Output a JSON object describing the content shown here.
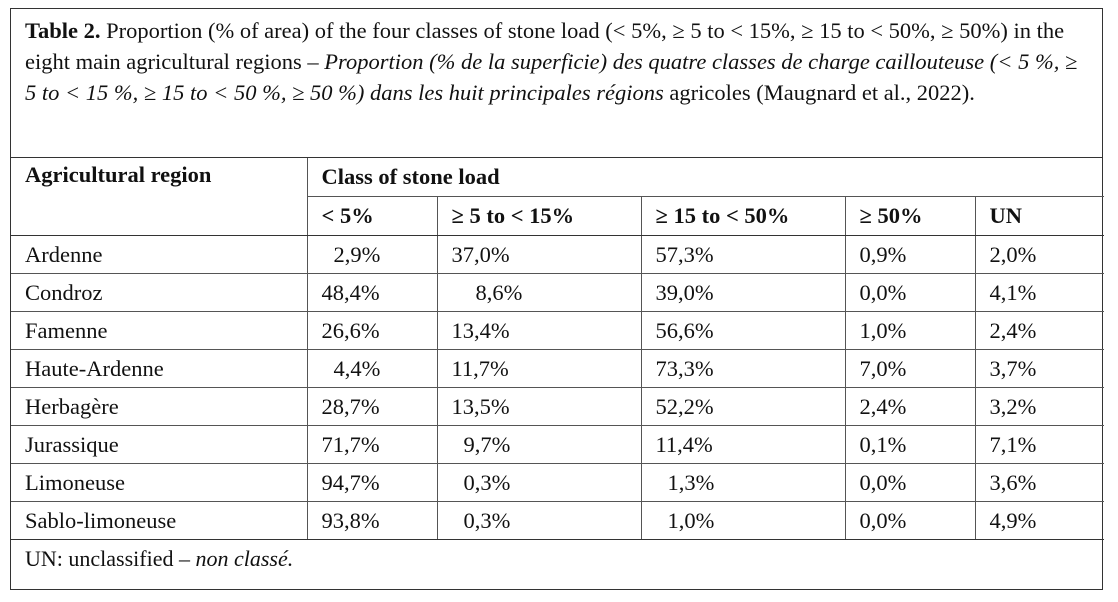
{
  "caption": {
    "label": "Table 2.",
    "text_en": " Proportion (% of area) of the four classes of stone load (< 5%, ≥ 5 to < 15%, ≥ 15 to < 50%, ≥ 50%) in the eight main agricultural regions – ",
    "text_fr": "Proportion (% de la superficie) des quatre classes de charge caillouteuse (< 5 %, ≥ 5 to < 15 %, ≥ 15 to < 50 %, ≥ 50 %) dans les huit principales régions",
    "text_tail": " agricoles (Maugnard et al., 2022)."
  },
  "table": {
    "region_header": "Agricultural region",
    "group_header": "Class of stone load",
    "columns": [
      "< 5%",
      "≥ 5 to < 15%",
      "≥ 15 to < 50%",
      "≥ 50%",
      "UN"
    ],
    "rows": [
      {
        "region": "Ardenne",
        "values": [
          "2,9%",
          "37,0%",
          "57,3%",
          "0,9%",
          "2,0%"
        ]
      },
      {
        "region": "Condroz",
        "values": [
          "48,4%",
          "8,6%",
          "39,0%",
          "0,0%",
          "4,1%"
        ]
      },
      {
        "region": "Famenne",
        "values": [
          "26,6%",
          "13,4%",
          "56,6%",
          "1,0%",
          "2,4%"
        ]
      },
      {
        "region": "Haute-Ardenne",
        "values": [
          "4,4%",
          "11,7%",
          "73,3%",
          "7,0%",
          "3,7%"
        ]
      },
      {
        "region": "Herbagère",
        "values": [
          "28,7%",
          "13,5%",
          "52,2%",
          "2,4%",
          "3,2%"
        ]
      },
      {
        "region": "Jurassique",
        "values": [
          "71,7%",
          "9,7%",
          "11,4%",
          "0,1%",
          "7,1%"
        ]
      },
      {
        "region": "Limoneuse",
        "values": [
          "94,7%",
          "0,3%",
          "1,3%",
          "0,0%",
          "3,6%"
        ]
      },
      {
        "region": "Sablo-limoneuse",
        "values": [
          "93,8%",
          "0,3%",
          "1,0%",
          "0,0%",
          "4,9%"
        ]
      }
    ]
  },
  "footnote": {
    "en": "UN: unclassified – ",
    "fr": "non classé."
  }
}
